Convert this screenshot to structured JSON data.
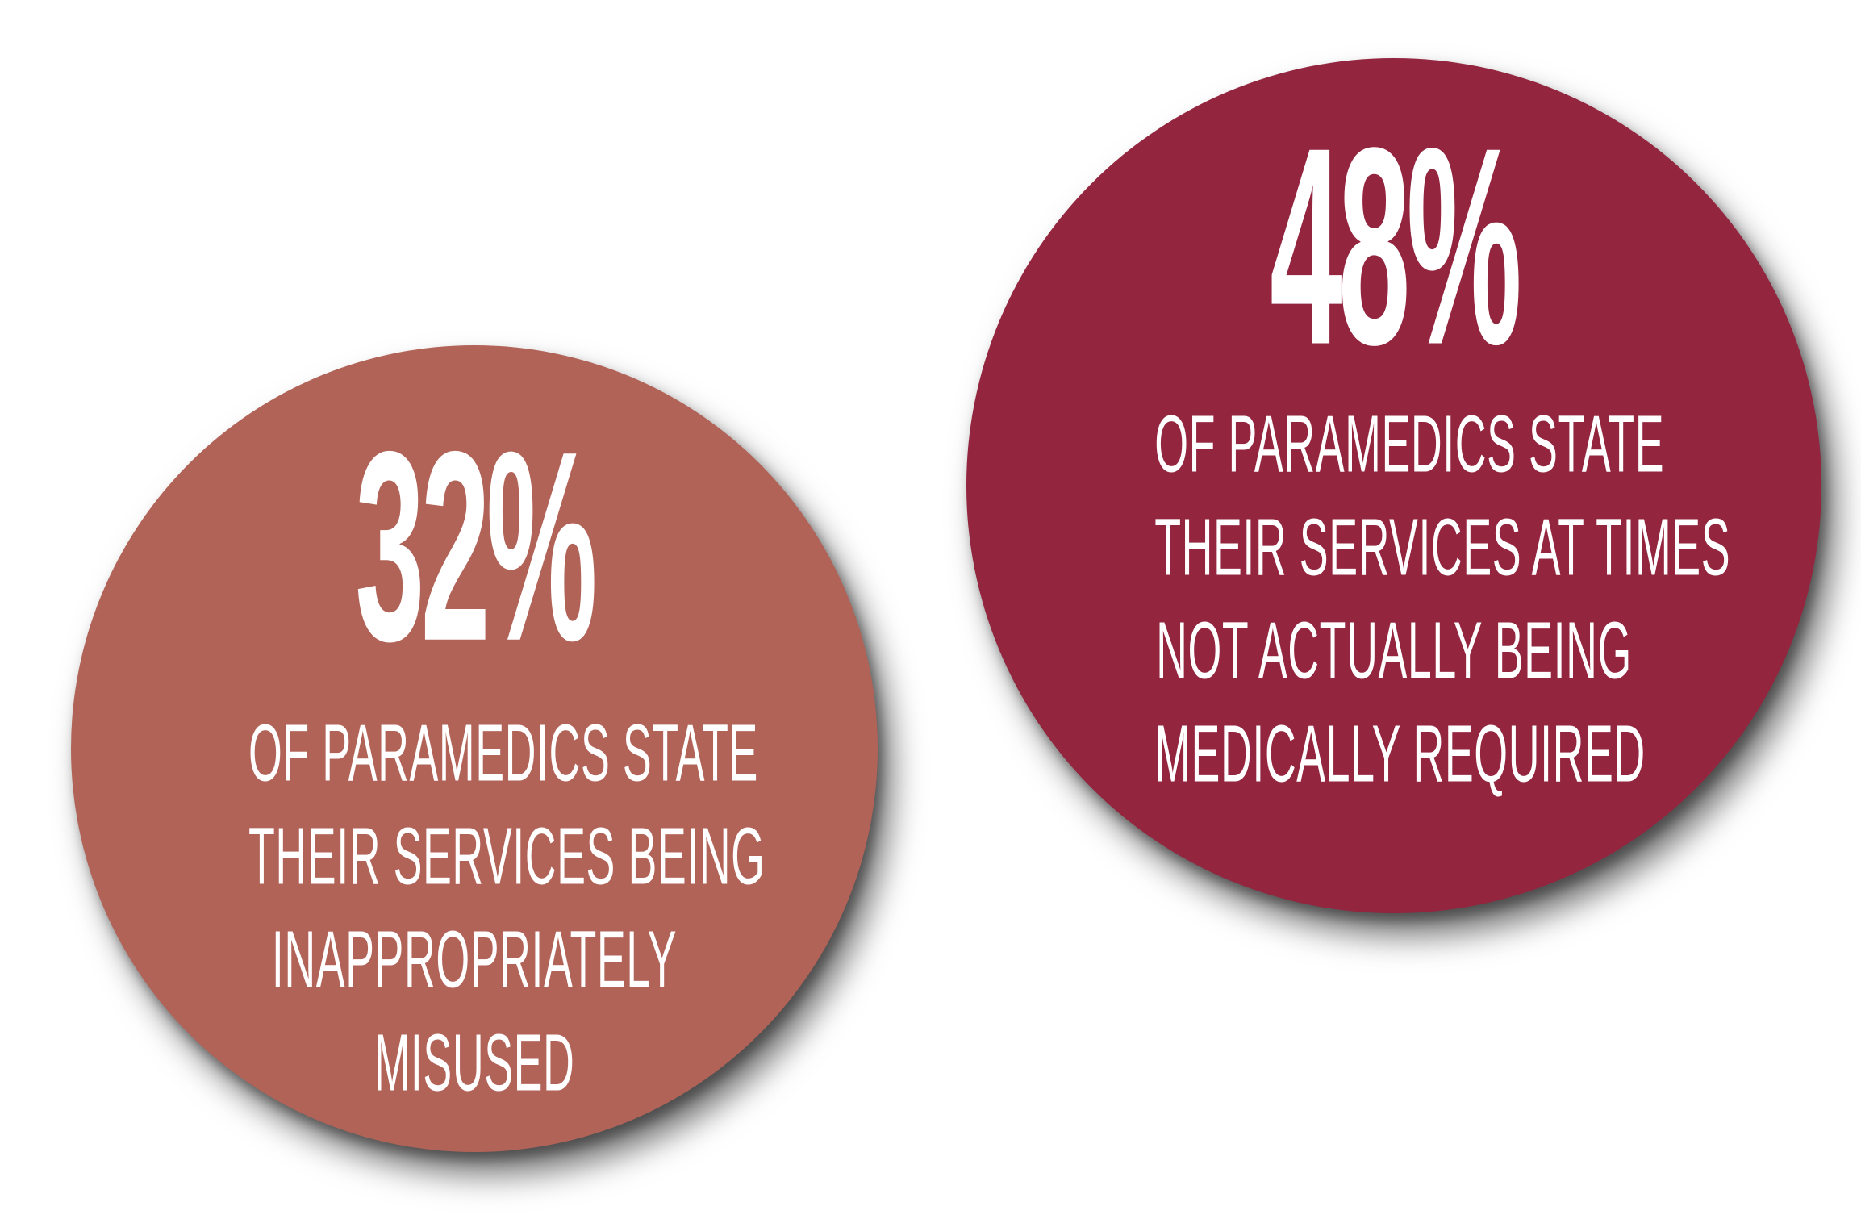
{
  "colors": {
    "background": "#ffffff",
    "left_circle": "#b26358",
    "right_circle": "#93253f",
    "text": "#ffffff"
  },
  "stats": [
    {
      "percent": "32%",
      "lines": [
        "OF PARAMEDICS STATE",
        "THEIR SERVICES BEING",
        "INAPPROPRIATELY",
        "MISUSED"
      ]
    },
    {
      "percent": "48%",
      "lines": [
        "OF PARAMEDICS STATE",
        "THEIR SERVICES AT TIMES",
        "NOT ACTUALLY BEING",
        "MEDICALLY REQUIRED"
      ]
    }
  ]
}
